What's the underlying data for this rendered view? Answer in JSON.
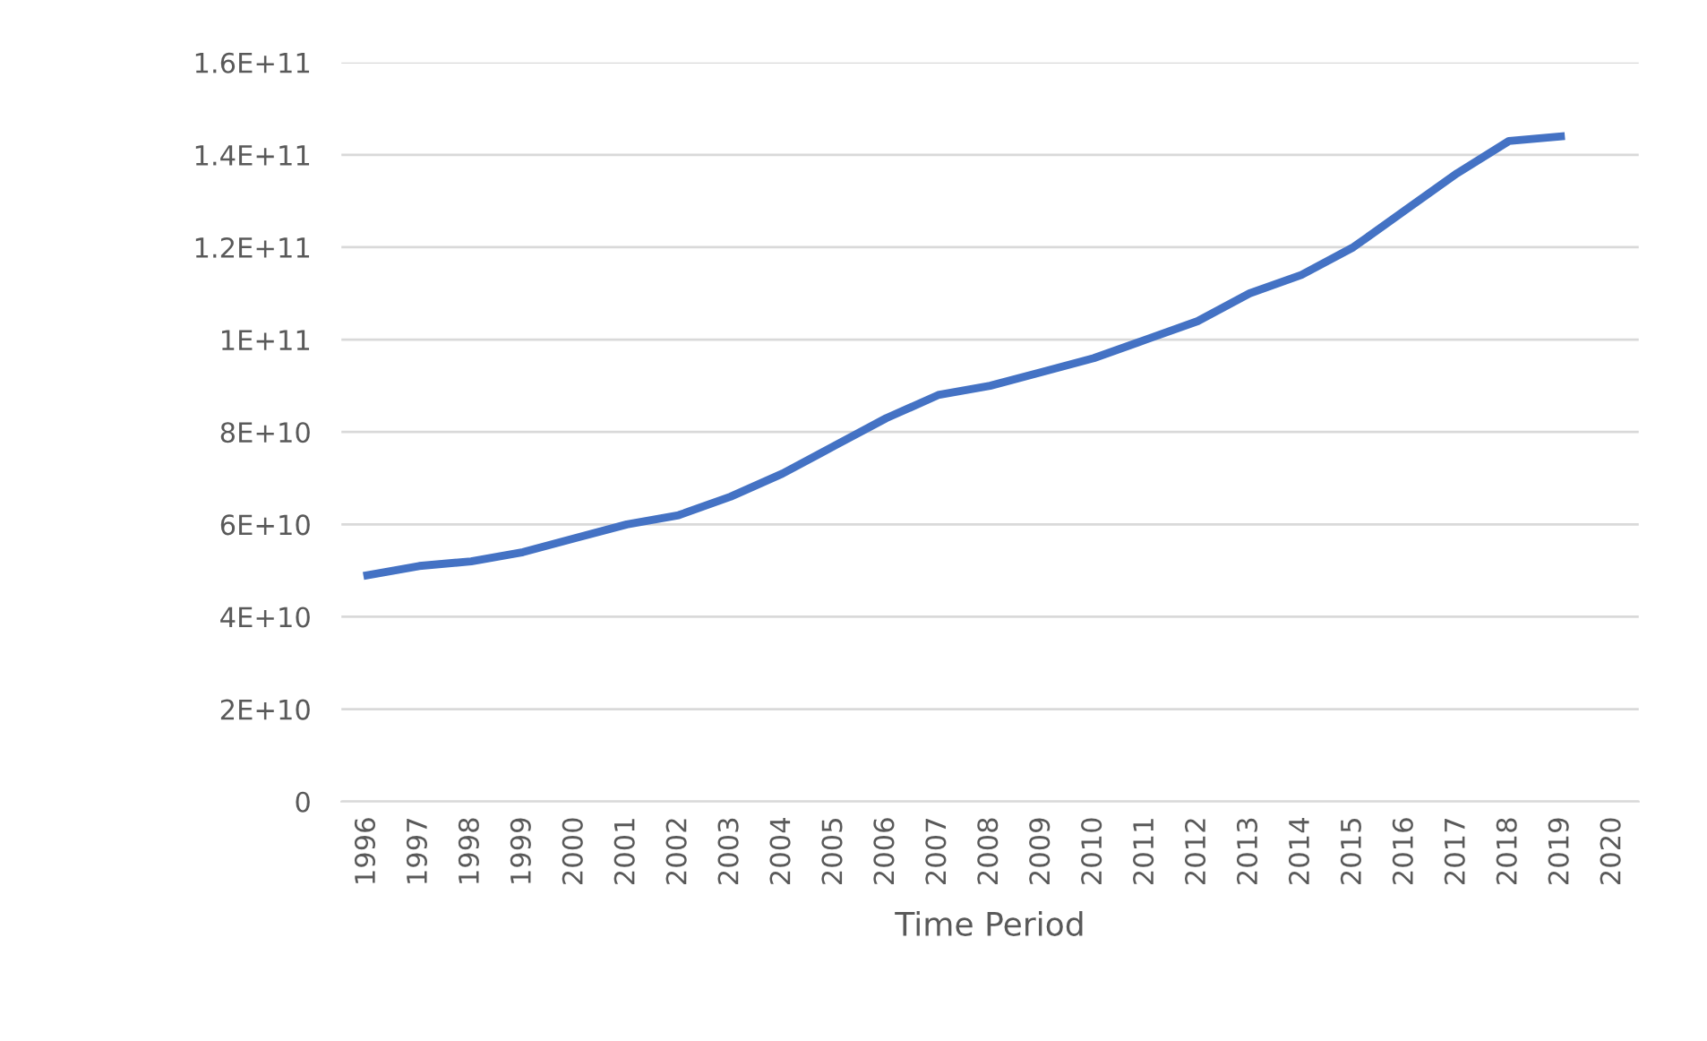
{
  "chart_data": {
    "type": "line",
    "xlabel": "Time Period",
    "categories": [
      "1996",
      "1997",
      "1998",
      "1999",
      "2000",
      "2001",
      "2002",
      "2003",
      "2004",
      "2005",
      "2006",
      "2007",
      "2008",
      "2009",
      "2010",
      "2011",
      "2012",
      "2013",
      "2014",
      "2015",
      "2016",
      "2017",
      "2018",
      "2019",
      "2020"
    ],
    "series": [
      {
        "color": "#4472c4",
        "values": [
          49000000000.0,
          51000000000.0,
          52000000000.0,
          54000000000.0,
          57000000000.0,
          60000000000.0,
          62000000000.0,
          66000000000.0,
          71000000000.0,
          77000000000.0,
          83000000000.0,
          88000000000.0,
          90000000000.0,
          93000000000.0,
          96000000000.0,
          100000000000.0,
          104000000000.0,
          110000000000.0,
          114000000000.0,
          120000000000.0,
          128000000000.0,
          136000000000.0,
          143000000000.0,
          144000000000.0,
          null
        ]
      }
    ],
    "ylim": [
      0,
      160000000000.0
    ],
    "yticks": [
      {
        "value": 0,
        "label": "0"
      },
      {
        "value": 20000000000.0,
        "label": "2E+10"
      },
      {
        "value": 40000000000.0,
        "label": "4E+10"
      },
      {
        "value": 60000000000.0,
        "label": "6E+10"
      },
      {
        "value": 80000000000.0,
        "label": "8E+10"
      },
      {
        "value": 100000000000.0,
        "label": "1E+11"
      },
      {
        "value": 120000000000.0,
        "label": "1.2E+11"
      },
      {
        "value": 140000000000.0,
        "label": "1.4E+11"
      },
      {
        "value": 160000000000.0,
        "label": "1.6E+11"
      }
    ],
    "grid": "y",
    "legend": false,
    "marker": "none",
    "line_style": "solid"
  }
}
